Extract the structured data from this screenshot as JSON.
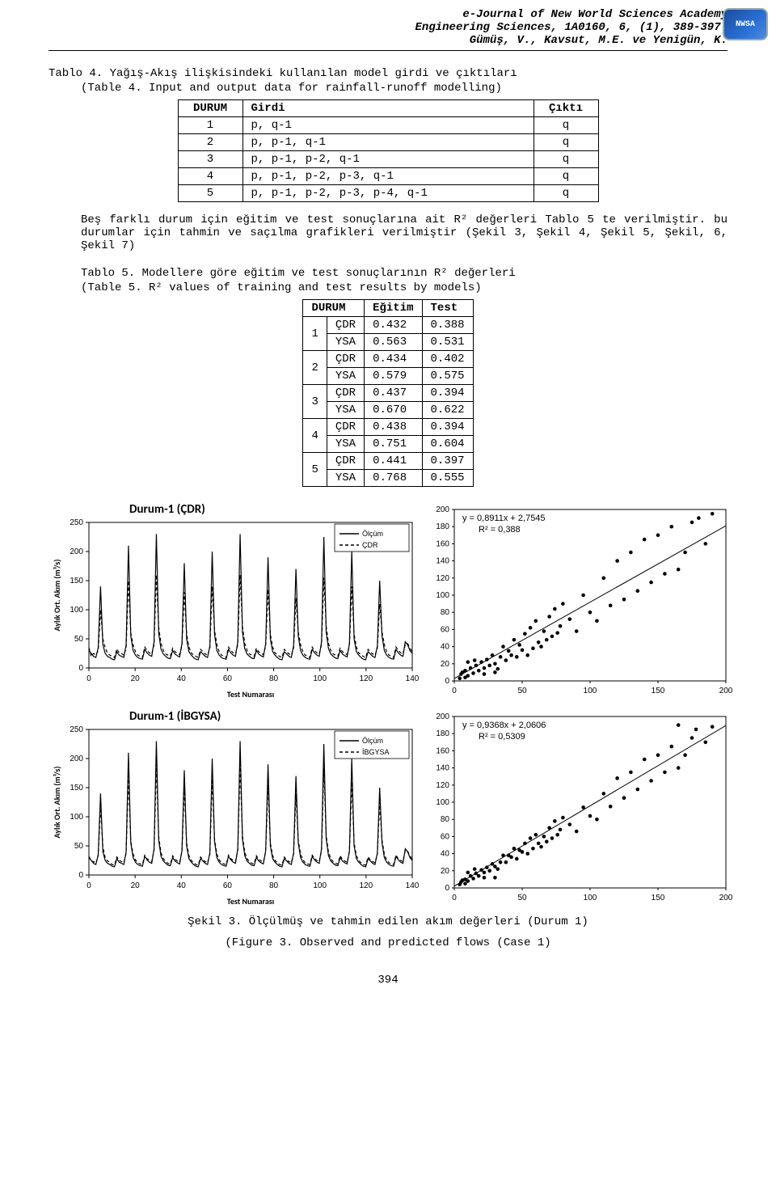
{
  "header": {
    "line1": "e-Journal of New World Sciences Academy",
    "line2": "Engineering Sciences, 1A0160, 6, (1), 389-397.",
    "line3": "Gümüş, V., Kavsut, M.E. ve Yenigün, K.",
    "logo_text": "NWSA"
  },
  "caption_tablo4_tr": "Tablo 4. Yağış-Akış ilişkisindeki kullanılan model girdi ve çıktıları",
  "caption_tablo4_en": "(Table 4. Input and output data for rainfall-runoff modelling)",
  "table4": {
    "headers": [
      "DURUM",
      "Girdi",
      "Çıktı"
    ],
    "rows": [
      [
        "1",
        "p, q-1",
        "q"
      ],
      [
        "2",
        "p, p-1, q-1",
        "q"
      ],
      [
        "3",
        "p, p-1, p-2, q-1",
        "q"
      ],
      [
        "4",
        "p, p-1, p-2, p-3, q-1",
        "q"
      ],
      [
        "5",
        "p, p-1, p-2, p-3, p-4, q-1",
        "q"
      ]
    ],
    "col_widths": [
      "80px",
      "360px",
      "80px"
    ]
  },
  "para1": "Beş farklı durum için eğitim ve test sonuçlarına ait R² değerleri Tablo 5 te verilmiştir. bu durumlar için tahmin ve saçılma grafikleri verilmiştir (Şekil 3, Şekil 4, Şekil 5, Şekil, 6, Şekil 7)",
  "caption_tablo5_tr": "Tablo 5. Modellere göre eğitim ve test sonuçlarının R² değerleri",
  "caption_tablo5_en": "(Table 5. R² values of training and test results by models)",
  "table5": {
    "headers": [
      "DURUM",
      "",
      "Eğitim",
      "Test"
    ],
    "rows": [
      [
        "1",
        "ÇDR",
        "0.432",
        "0.388"
      ],
      [
        "",
        "YSA",
        "0.563",
        "0.531"
      ],
      [
        "2",
        "ÇDR",
        "0.434",
        "0.402"
      ],
      [
        "",
        "YSA",
        "0.579",
        "0.575"
      ],
      [
        "3",
        "ÇDR",
        "0.437",
        "0.394"
      ],
      [
        "",
        "YSA",
        "0.670",
        "0.622"
      ],
      [
        "4",
        "ÇDR",
        "0.438",
        "0.394"
      ],
      [
        "",
        "YSA",
        "0.751",
        "0.604"
      ],
      [
        "5",
        "ÇDR",
        "0.441",
        "0.397"
      ],
      [
        "",
        "YSA",
        "0.768",
        "0.555"
      ]
    ]
  },
  "charts": {
    "ts1": {
      "type": "line",
      "title": "Durum-1 (ÇDR)",
      "ylabel": "Aylık Ort. Akım (m³/s)",
      "xlabel": "Test Numarası",
      "xlim": [
        0,
        140
      ],
      "xtick_step": 20,
      "ylim": [
        0,
        250
      ],
      "ytick_step": 50,
      "legend": [
        {
          "label": "Ölçüm",
          "style": "solid",
          "color": "#000000"
        },
        {
          "label": "ÇDR",
          "style": "dash",
          "color": "#000000"
        }
      ],
      "series": {
        "olcum": [
          30,
          25,
          20,
          18,
          35,
          140,
          40,
          25,
          20,
          18,
          15,
          14,
          28,
          22,
          20,
          18,
          40,
          210,
          55,
          30,
          22,
          18,
          16,
          15,
          32,
          26,
          22,
          20,
          45,
          230,
          60,
          32,
          24,
          20,
          17,
          16,
          30,
          24,
          21,
          19,
          42,
          180,
          50,
          28,
          22,
          18,
          15,
          14,
          28,
          24,
          20,
          18,
          38,
          200,
          58,
          30,
          22,
          18,
          16,
          15,
          32,
          26,
          22,
          20,
          45,
          230,
          62,
          33,
          24,
          20,
          17,
          16,
          30,
          24,
          21,
          19,
          42,
          190,
          50,
          28,
          22,
          18,
          15,
          14,
          28,
          24,
          20,
          18,
          38,
          170,
          55,
          30,
          22,
          18,
          16,
          15,
          32,
          26,
          22,
          20,
          45,
          225,
          62,
          33,
          24,
          20,
          17,
          16,
          30,
          24,
          21,
          19,
          42,
          200,
          50,
          28,
          22,
          18,
          15,
          14,
          28,
          24,
          20,
          18,
          38,
          150,
          55,
          30,
          22,
          18,
          16,
          15,
          32,
          26,
          22,
          20,
          45,
          40,
          30,
          25
        ],
        "model": [
          35,
          20,
          25,
          22,
          30,
          100,
          50,
          35,
          25,
          22,
          20,
          18,
          33,
          26,
          25,
          22,
          34,
          150,
          60,
          40,
          28,
          22,
          20,
          18,
          36,
          30,
          26,
          24,
          40,
          160,
          70,
          42,
          30,
          24,
          22,
          20,
          34,
          28,
          25,
          23,
          38,
          130,
          58,
          36,
          26,
          22,
          20,
          18,
          32,
          28,
          24,
          22,
          34,
          140,
          65,
          40,
          28,
          22,
          20,
          18,
          36,
          30,
          26,
          24,
          40,
          160,
          72,
          42,
          30,
          24,
          22,
          20,
          34,
          28,
          25,
          23,
          38,
          135,
          58,
          36,
          26,
          22,
          20,
          18,
          32,
          28,
          24,
          22,
          34,
          120,
          62,
          40,
          28,
          22,
          20,
          18,
          36,
          30,
          26,
          24,
          40,
          155,
          72,
          42,
          30,
          24,
          22,
          20,
          34,
          28,
          25,
          23,
          38,
          140,
          58,
          36,
          26,
          22,
          20,
          18,
          32,
          28,
          24,
          22,
          34,
          110,
          62,
          40,
          28,
          22,
          20,
          18,
          36,
          30,
          26,
          24,
          40,
          42,
          34,
          28
        ]
      },
      "line_width": 1.2,
      "background_color": "#ffffff",
      "axis_color": "#000000",
      "font_size": 10
    },
    "sc1": {
      "type": "scatter",
      "eq": "y = 0,8911x + 2,7545",
      "r2": "R² = 0,388",
      "xlim": [
        0,
        200
      ],
      "xtick_step": 50,
      "ylim": [
        0,
        200
      ],
      "ytick_step": 20,
      "line": {
        "m": 0.8911,
        "b": 2.7545
      },
      "marker_size": 2.3,
      "marker_color": "#000000",
      "line_color": "#000000",
      "points": [
        [
          5,
          8
        ],
        [
          8,
          12
        ],
        [
          10,
          6
        ],
        [
          12,
          15
        ],
        [
          14,
          9
        ],
        [
          16,
          18
        ],
        [
          18,
          12
        ],
        [
          20,
          22
        ],
        [
          22,
          15
        ],
        [
          24,
          25
        ],
        [
          26,
          18
        ],
        [
          28,
          30
        ],
        [
          30,
          20
        ],
        [
          32,
          14
        ],
        [
          34,
          28
        ],
        [
          36,
          40
        ],
        [
          38,
          24
        ],
        [
          40,
          35
        ],
        [
          42,
          30
        ],
        [
          44,
          48
        ],
        [
          46,
          28
        ],
        [
          48,
          42
        ],
        [
          50,
          36
        ],
        [
          52,
          55
        ],
        [
          54,
          30
        ],
        [
          56,
          62
        ],
        [
          58,
          38
        ],
        [
          60,
          70
        ],
        [
          62,
          45
        ],
        [
          64,
          40
        ],
        [
          66,
          58
        ],
        [
          68,
          48
        ],
        [
          70,
          75
        ],
        [
          72,
          52
        ],
        [
          74,
          84
        ],
        [
          76,
          56
        ],
        [
          78,
          64
        ],
        [
          80,
          90
        ],
        [
          85,
          72
        ],
        [
          90,
          58
        ],
        [
          95,
          100
        ],
        [
          100,
          80
        ],
        [
          105,
          70
        ],
        [
          110,
          120
        ],
        [
          115,
          88
        ],
        [
          120,
          140
        ],
        [
          125,
          95
        ],
        [
          130,
          150
        ],
        [
          135,
          105
        ],
        [
          140,
          165
        ],
        [
          145,
          115
        ],
        [
          150,
          170
        ],
        [
          155,
          125
        ],
        [
          160,
          180
        ],
        [
          165,
          130
        ],
        [
          170,
          150
        ],
        [
          175,
          185
        ],
        [
          180,
          190
        ],
        [
          185,
          160
        ],
        [
          190,
          195
        ],
        [
          30,
          10
        ],
        [
          10,
          22
        ],
        [
          8,
          4
        ],
        [
          6,
          10
        ],
        [
          4,
          3
        ],
        [
          15,
          24
        ],
        [
          22,
          8
        ]
      ]
    },
    "ts2": {
      "type": "line",
      "title": "Durum-1 (İBGYSA)",
      "ylabel": "Aylık Ort. Akım (m³/s)",
      "xlabel": "Test Numarası",
      "xlim": [
        0,
        140
      ],
      "xtick_step": 20,
      "ylim": [
        0,
        250
      ],
      "ytick_step": 50,
      "legend": [
        {
          "label": "Ölçüm",
          "style": "solid",
          "color": "#000000"
        },
        {
          "label": "İBGYSA",
          "style": "dash",
          "color": "#000000"
        }
      ],
      "series": {
        "olcum": [
          30,
          25,
          20,
          18,
          35,
          140,
          40,
          25,
          20,
          18,
          15,
          14,
          28,
          22,
          20,
          18,
          40,
          210,
          55,
          30,
          22,
          18,
          16,
          15,
          32,
          26,
          22,
          20,
          45,
          230,
          60,
          32,
          24,
          20,
          17,
          16,
          30,
          24,
          21,
          19,
          42,
          180,
          50,
          28,
          22,
          18,
          15,
          14,
          28,
          24,
          20,
          18,
          38,
          200,
          58,
          30,
          22,
          18,
          16,
          15,
          32,
          26,
          22,
          20,
          45,
          230,
          62,
          33,
          24,
          20,
          17,
          16,
          30,
          24,
          21,
          19,
          42,
          190,
          50,
          28,
          22,
          18,
          15,
          14,
          28,
          24,
          20,
          18,
          38,
          170,
          55,
          30,
          22,
          18,
          16,
          15,
          32,
          26,
          22,
          20,
          45,
          225,
          62,
          33,
          24,
          20,
          17,
          16,
          30,
          24,
          21,
          19,
          42,
          200,
          50,
          28,
          22,
          18,
          15,
          14,
          28,
          24,
          20,
          18,
          38,
          150,
          55,
          30,
          22,
          18,
          16,
          15,
          32,
          26,
          22,
          20,
          45,
          40,
          30,
          25
        ],
        "model": [
          32,
          24,
          23,
          20,
          33,
          120,
          48,
          30,
          24,
          21,
          18,
          17,
          31,
          25,
          23,
          21,
          37,
          170,
          58,
          36,
          26,
          21,
          19,
          18,
          34,
          28,
          25,
          23,
          42,
          190,
          66,
          38,
          28,
          23,
          20,
          19,
          33,
          27,
          24,
          22,
          40,
          150,
          55,
          33,
          25,
          21,
          18,
          17,
          31,
          26,
          23,
          21,
          36,
          165,
          62,
          36,
          26,
          21,
          19,
          18,
          34,
          28,
          25,
          23,
          42,
          190,
          68,
          39,
          28,
          23,
          20,
          19,
          33,
          27,
          24,
          22,
          40,
          155,
          55,
          33,
          25,
          21,
          18,
          17,
          31,
          26,
          23,
          21,
          36,
          140,
          60,
          36,
          26,
          21,
          19,
          18,
          34,
          28,
          25,
          23,
          42,
          185,
          68,
          39,
          28,
          23,
          20,
          19,
          33,
          27,
          24,
          22,
          40,
          160,
          55,
          33,
          25,
          21,
          18,
          17,
          31,
          26,
          23,
          21,
          36,
          125,
          60,
          36,
          26,
          21,
          19,
          18,
          34,
          28,
          25,
          23,
          42,
          41,
          33,
          27
        ]
      },
      "line_width": 1.2,
      "background_color": "#ffffff",
      "axis_color": "#000000",
      "font_size": 10
    },
    "sc2": {
      "type": "scatter",
      "eq": "y = 0,9368x + 2,0606",
      "r2": "R² = 0,5309",
      "xlim": [
        0,
        200
      ],
      "xtick_step": 50,
      "ylim": [
        0,
        200
      ],
      "ytick_step": 20,
      "line": {
        "m": 0.9368,
        "b": 2.0606
      },
      "marker_size": 2.3,
      "marker_color": "#000000",
      "line_color": "#000000",
      "points": [
        [
          5,
          7
        ],
        [
          8,
          10
        ],
        [
          10,
          8
        ],
        [
          12,
          14
        ],
        [
          14,
          11
        ],
        [
          16,
          17
        ],
        [
          18,
          14
        ],
        [
          20,
          21
        ],
        [
          22,
          18
        ],
        [
          24,
          24
        ],
        [
          26,
          20
        ],
        [
          28,
          28
        ],
        [
          30,
          25
        ],
        [
          32,
          22
        ],
        [
          34,
          30
        ],
        [
          36,
          38
        ],
        [
          38,
          30
        ],
        [
          40,
          38
        ],
        [
          42,
          36
        ],
        [
          44,
          46
        ],
        [
          46,
          34
        ],
        [
          48,
          44
        ],
        [
          50,
          42
        ],
        [
          52,
          52
        ],
        [
          54,
          40
        ],
        [
          56,
          58
        ],
        [
          58,
          46
        ],
        [
          60,
          62
        ],
        [
          62,
          52
        ],
        [
          64,
          48
        ],
        [
          66,
          60
        ],
        [
          68,
          54
        ],
        [
          70,
          70
        ],
        [
          72,
          58
        ],
        [
          74,
          78
        ],
        [
          76,
          62
        ],
        [
          78,
          68
        ],
        [
          80,
          82
        ],
        [
          85,
          74
        ],
        [
          90,
          66
        ],
        [
          95,
          94
        ],
        [
          100,
          84
        ],
        [
          105,
          80
        ],
        [
          110,
          110
        ],
        [
          115,
          95
        ],
        [
          120,
          128
        ],
        [
          125,
          105
        ],
        [
          130,
          135
        ],
        [
          135,
          115
        ],
        [
          140,
          150
        ],
        [
          145,
          125
        ],
        [
          150,
          155
        ],
        [
          155,
          135
        ],
        [
          160,
          165
        ],
        [
          165,
          140
        ],
        [
          170,
          155
        ],
        [
          175,
          175
        ],
        [
          178,
          185
        ],
        [
          165,
          190
        ],
        [
          185,
          170
        ],
        [
          190,
          188
        ],
        [
          30,
          12
        ],
        [
          10,
          18
        ],
        [
          8,
          5
        ],
        [
          6,
          9
        ],
        [
          4,
          4
        ],
        [
          15,
          22
        ],
        [
          22,
          12
        ]
      ]
    }
  },
  "figcap_tr": "Şekil 3. Ölçülmüş ve tahmin edilen akım değerleri (Durum 1)",
  "figcap_en": "(Figure 3. Observed and predicted flows (Case 1)",
  "page_number": "394"
}
